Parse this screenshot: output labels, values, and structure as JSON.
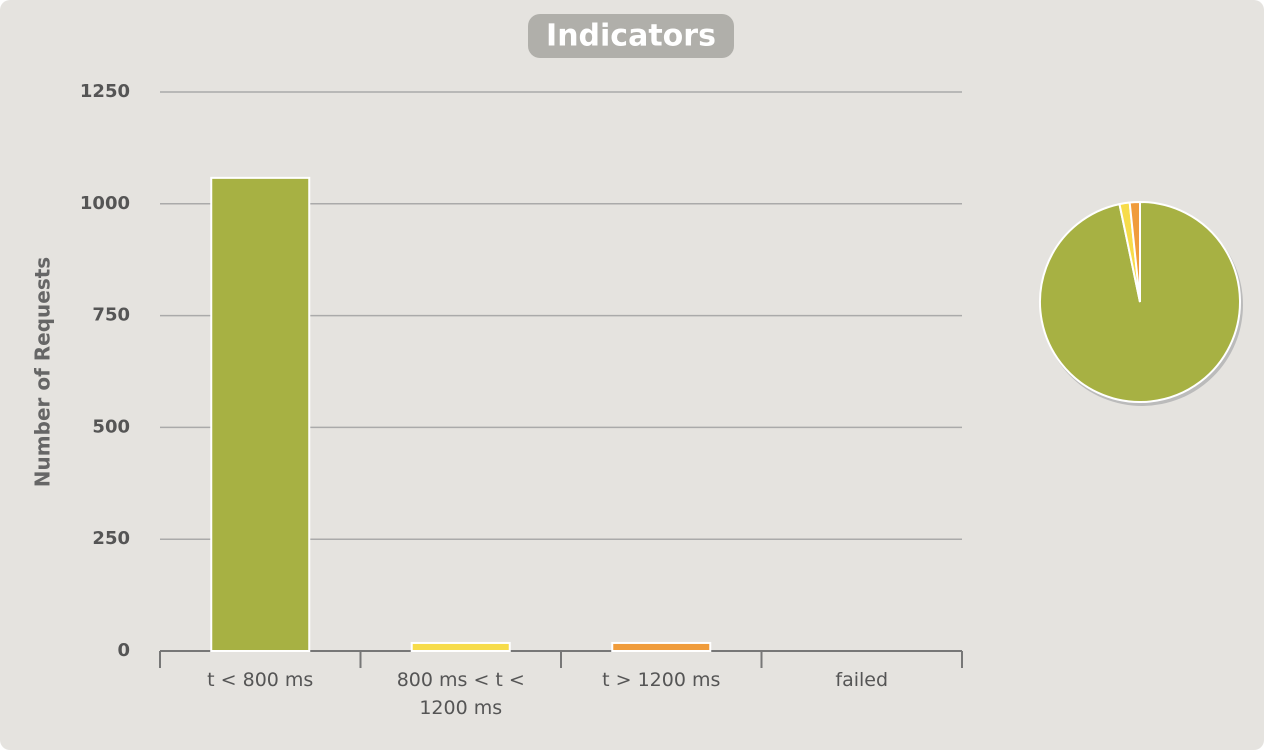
{
  "chart_data": {
    "type": "bar",
    "title": "Indicators",
    "y_label": "Number of Requests",
    "categories": [
      "t < 800 ms",
      "800 ms < t < 1200 ms",
      "t > 1200 ms",
      "failed"
    ],
    "values": [
      1058,
      18,
      18,
      0
    ],
    "colors": [
      "#a7b143",
      "#f7dc4a",
      "#f09c3b",
      "#e1574d"
    ],
    "ylim": [
      0,
      1250
    ],
    "yticks": [
      0,
      250,
      500,
      750,
      1000,
      1250
    ],
    "grid": true,
    "pie": true
  }
}
